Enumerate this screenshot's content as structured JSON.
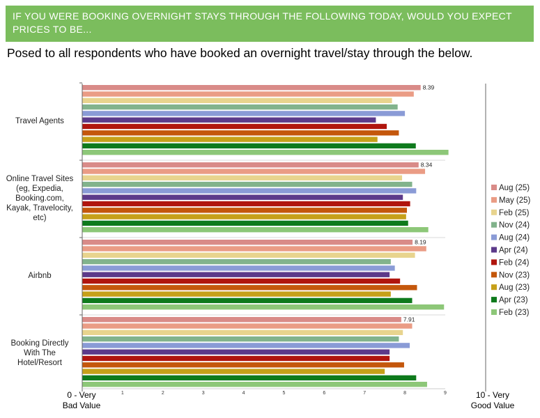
{
  "header": {
    "title": "IF YOU WERE BOOKING OVERNIGHT STAYS THROUGH THE FOLLOWING TODAY, WOULD YOU EXPECT PRICES TO BE..."
  },
  "subtitle": "Posed to all respondents who have booked an overnight travel/stay through the below.",
  "chart_data": {
    "type": "bar",
    "orientation": "horizontal",
    "categories": [
      [
        "Travel Agents"
      ],
      [
        "Online Travel Sites",
        "(eg, Expedia,",
        "Booking.com,",
        "Kayak, Travelocity,",
        "etc)"
      ],
      [
        "Airbnb"
      ],
      [
        "Booking Directly",
        "With The",
        "Hotel/Resort"
      ]
    ],
    "series": [
      {
        "name": "Aug (25)",
        "color": "#d98b88",
        "values": [
          8.39,
          8.34,
          8.19,
          7.91
        ]
      },
      {
        "name": "May (25)",
        "color": "#ea9c85",
        "values": [
          8.22,
          8.5,
          8.53,
          8.18
        ]
      },
      {
        "name": "Feb (25)",
        "color": "#e8d48e",
        "values": [
          7.68,
          7.93,
          8.25,
          7.95
        ]
      },
      {
        "name": "Nov (24)",
        "color": "#82b38c",
        "values": [
          7.82,
          8.18,
          7.65,
          7.85
        ]
      },
      {
        "name": "Aug (24)",
        "color": "#8a9bd6",
        "values": [
          8.0,
          8.28,
          7.75,
          8.12
        ]
      },
      {
        "name": "Apr (24)",
        "color": "#5c3a8a",
        "values": [
          7.28,
          7.95,
          7.62,
          7.62
        ]
      },
      {
        "name": "Feb (24)",
        "color": "#b0150e",
        "values": [
          7.55,
          8.13,
          7.88,
          7.62
        ]
      },
      {
        "name": "Nov (23)",
        "color": "#c4570c",
        "values": [
          7.85,
          8.05,
          8.3,
          7.98
        ]
      },
      {
        "name": "Aug (23)",
        "color": "#c6a019",
        "values": [
          7.32,
          8.03,
          7.65,
          7.5
        ]
      },
      {
        "name": "Apr (23)",
        "color": "#0e7a1c",
        "values": [
          8.27,
          8.08,
          8.18,
          8.28
        ]
      },
      {
        "name": "Feb (23)",
        "color": "#8dc778",
        "values": [
          9.08,
          8.58,
          8.97,
          8.55
        ]
      }
    ],
    "labeled_series": "Aug (25)",
    "xlim": [
      0,
      9
    ],
    "x_ticks": [
      "1",
      "2",
      "3",
      "4",
      "5",
      "6",
      "7",
      "8",
      "9"
    ],
    "left_end_label": [
      "0 - Very",
      "Bad Value"
    ],
    "right_end_label": [
      "10 - Very",
      "Good Value"
    ],
    "legend_position": "right",
    "grid": false
  }
}
